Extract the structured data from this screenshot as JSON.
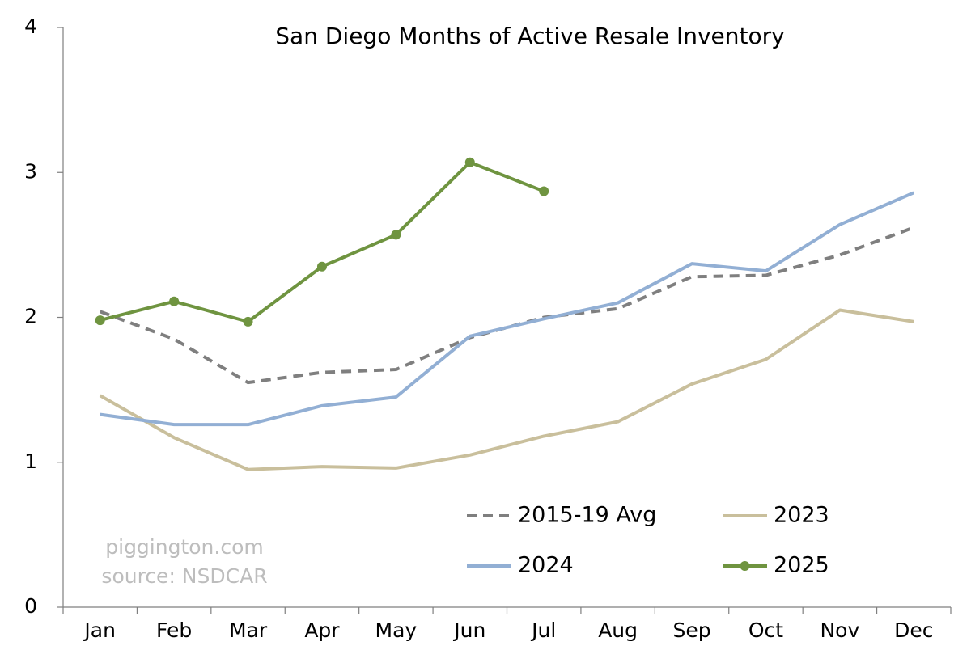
{
  "chart_data": {
    "type": "line",
    "title": "San Diego Months of Active Resale Inventory",
    "categories": [
      "Jan",
      "Feb",
      "Mar",
      "Apr",
      "May",
      "Jun",
      "Jul",
      "Aug",
      "Sep",
      "Oct",
      "Nov",
      "Dec"
    ],
    "series": [
      {
        "name": "2015-19 Avg",
        "color": "#7f7f7f",
        "dashed": true,
        "values": [
          2.04,
          1.85,
          1.55,
          1.62,
          1.64,
          1.86,
          2.0,
          2.06,
          2.28,
          2.29,
          2.43,
          2.62
        ]
      },
      {
        "name": "2023",
        "color": "#c9bf9c",
        "values": [
          1.46,
          1.17,
          0.95,
          0.97,
          0.96,
          1.05,
          1.18,
          1.28,
          1.54,
          1.71,
          2.05,
          1.97
        ]
      },
      {
        "name": "2024",
        "color": "#92afd4",
        "values": [
          1.33,
          1.26,
          1.26,
          1.39,
          1.45,
          1.87,
          1.99,
          2.1,
          2.37,
          2.32,
          2.64,
          2.86
        ]
      },
      {
        "name": "2025",
        "color": "#6f9440",
        "markers": true,
        "values": [
          1.98,
          2.11,
          1.97,
          2.35,
          2.57,
          3.07,
          2.87,
          null,
          null,
          null,
          null,
          null
        ]
      }
    ],
    "ylim": [
      0,
      4
    ],
    "yticks": [
      0,
      1,
      2,
      3,
      4
    ],
    "annotations": [
      "piggington.com",
      "source: NSDCAR"
    ]
  }
}
